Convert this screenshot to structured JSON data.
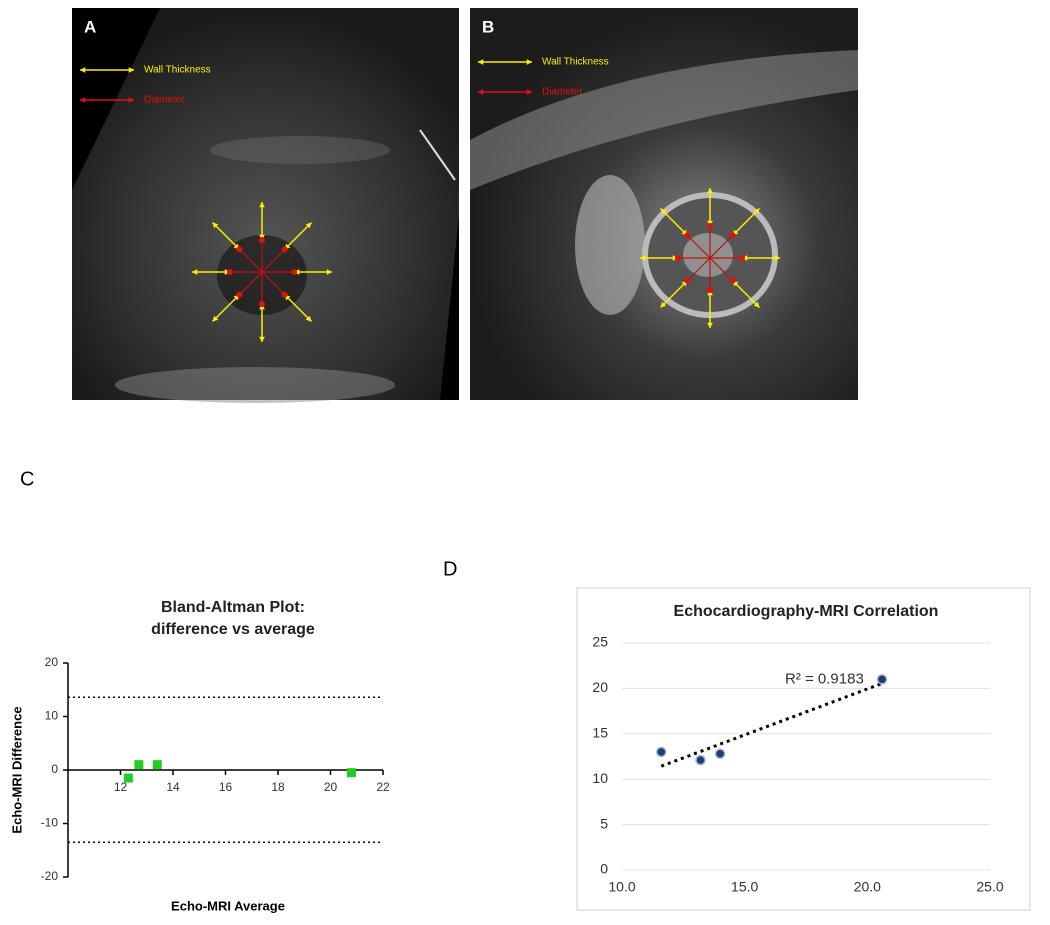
{
  "images": [
    {
      "label": "A",
      "legend": [
        "Wall Thickness",
        "Diameter"
      ]
    },
    {
      "label": "B",
      "legend": [
        "Wall Thickness",
        "Diameter"
      ]
    }
  ],
  "chart_data": [
    {
      "type": "scatter",
      "panel": "C",
      "title": [
        "Bland-Altman Plot:",
        "difference vs average"
      ],
      "x_label": "Echo-MRI Average",
      "y_label": "Echo-MRI Difference",
      "x": [
        12.3,
        12.7,
        13.4,
        20.8
      ],
      "values": [
        -1.5,
        1.0,
        1.0,
        -0.5
      ],
      "color": "#22cc22",
      "marker": "square",
      "limits_of_agreement": [
        13.6,
        -13.5
      ],
      "xlim": [
        10,
        22
      ],
      "xticks": [
        12,
        14,
        16,
        18,
        20,
        22
      ],
      "ylim": [
        -20,
        20
      ],
      "yticks": [
        -20,
        -10,
        0,
        10,
        20
      ],
      "grid": false
    },
    {
      "type": "scatter",
      "panel": "D",
      "title": [
        "Echocardiography-MRI Correlation"
      ],
      "x": [
        11.6,
        13.2,
        14.0,
        20.6
      ],
      "values": [
        13.0,
        12.1,
        12.8,
        21.0
      ],
      "color": "#1f3b73",
      "marker": "circle",
      "trendline": true,
      "annotation": "R² = 0.9183",
      "xlim": [
        10,
        25
      ],
      "xticks": [
        {
          "value": 10,
          "label": "10.0"
        },
        {
          "value": 15,
          "label": "15.0"
        },
        {
          "value": 20,
          "label": "20.0"
        },
        {
          "value": 25,
          "label": "25.0"
        }
      ],
      "ylim": [
        0,
        25
      ],
      "yticks": [
        0,
        5,
        10,
        15,
        20,
        25
      ],
      "grid": true
    }
  ]
}
